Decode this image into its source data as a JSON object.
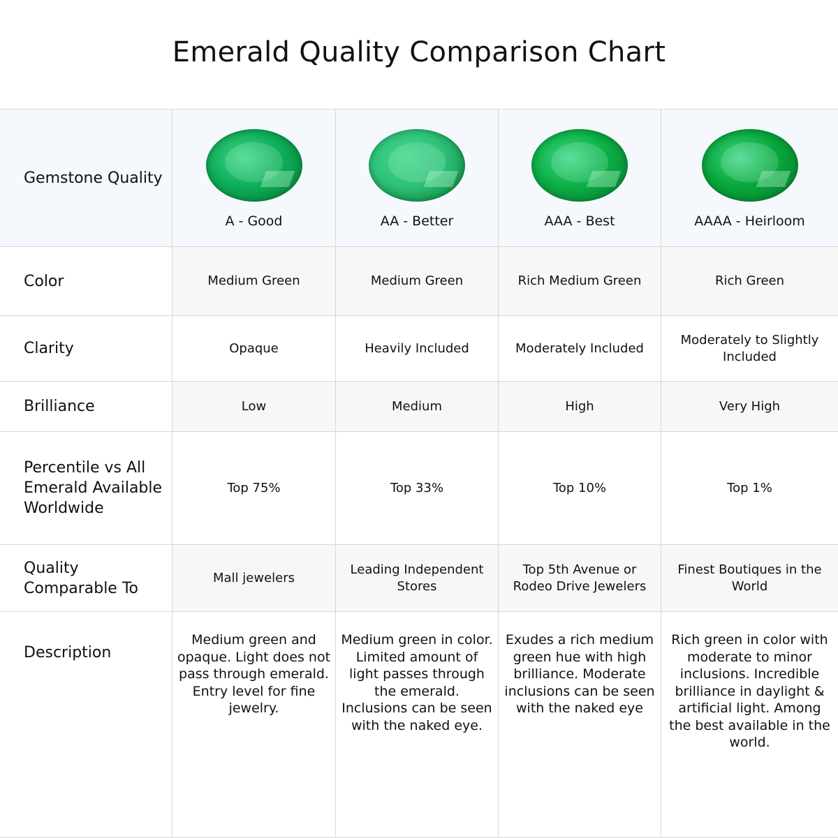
{
  "title": "Emerald Quality Comparison Chart",
  "header": {
    "label": "Gemstone Quality",
    "grades": [
      {
        "label": "A - Good",
        "gem_color": "#0fae5a"
      },
      {
        "label": "AA - Better",
        "gem_color": "#2fc27a"
      },
      {
        "label": "AAA - Best",
        "gem_color": "#0cb046"
      },
      {
        "label": "AAAA - Heirloom",
        "gem_color": "#08a83c"
      }
    ]
  },
  "rows": [
    {
      "label": "Color",
      "values": [
        "Medium Green",
        "Medium Green",
        "Rich Medium Green",
        "Rich Green"
      ]
    },
    {
      "label": "Clarity",
      "values": [
        "Opaque",
        "Heavily Included",
        "Moderately Included",
        "Moderately to Slightly Included"
      ]
    },
    {
      "label": "Brilliance",
      "values": [
        "Low",
        "Medium",
        "High",
        "Very High"
      ]
    },
    {
      "label": "Percentile vs All Emerald Available Worldwide",
      "values": [
        "Top 75%",
        "Top 33%",
        "Top 10%",
        "Top 1%"
      ]
    },
    {
      "label": "Quality Comparable To",
      "values": [
        "Mall jewelers",
        "Leading Independent Stores",
        "Top 5th Avenue or Rodeo Drive Jewelers",
        "Finest Boutiques in the World"
      ]
    },
    {
      "label": "Description",
      "values": [
        "Medium green and opaque. Light does not pass through emerald. Entry level for fine jewelry.",
        "Medium green in color. Limited amount of light passes through the emerald. Inclusions can be seen with the naked eye.",
        "Exudes a rich medium green hue with high brilliance. Moderate inclusions can be seen with the naked eye",
        "Rich green in color with moderate to minor inclusions. Incredible brilliance in daylight & artificial light. Among the best available in the world."
      ]
    }
  ]
}
